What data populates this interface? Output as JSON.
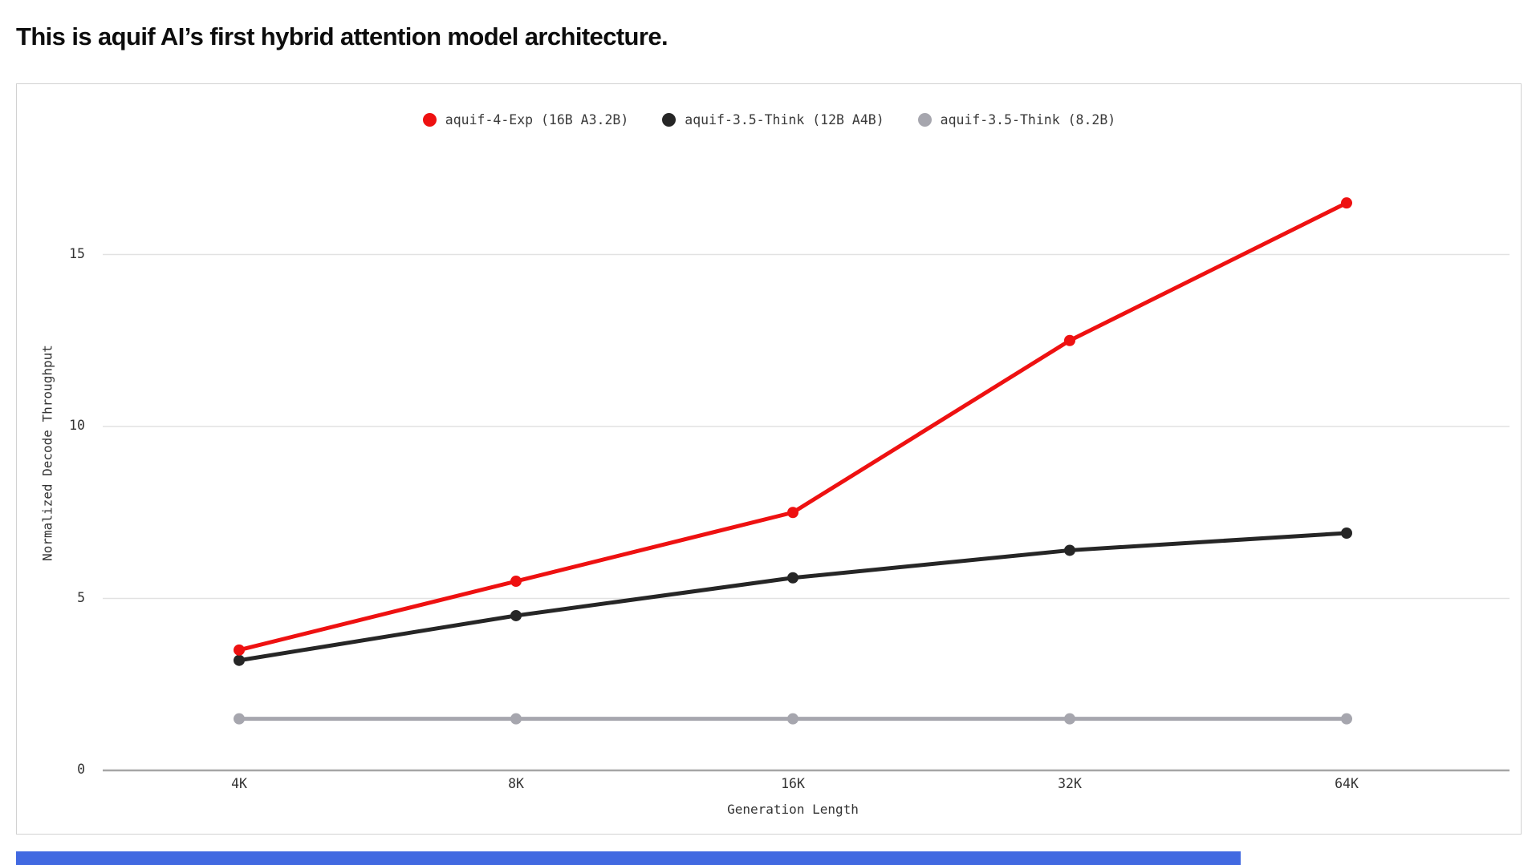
{
  "page": {
    "title": "This is aquif AI’s first hybrid attention model architecture."
  },
  "chart_data": {
    "type": "line",
    "categories": [
      "4K",
      "8K",
      "16K",
      "32K",
      "64K"
    ],
    "xlabel": "Generation Length",
    "ylabel": "Normalized Decode Throughput",
    "yticks": [
      0,
      5,
      10,
      15
    ],
    "ytick_labels": [
      "0",
      "5",
      "10",
      "15"
    ],
    "ylim": [
      0,
      18
    ],
    "grid": true,
    "legend_position": "top-center",
    "series": [
      {
        "name": "aquif-4-Exp (16B A3.2B)",
        "color": "#ee1111",
        "values": [
          3.5,
          5.5,
          7.5,
          12.5,
          16.5
        ]
      },
      {
        "name": "aquif-3.5-Think (12B A4B)",
        "color": "#262626",
        "values": [
          3.2,
          4.5,
          5.6,
          6.4,
          6.9
        ]
      },
      {
        "name": "aquif-3.5-Think (8.2B)",
        "color": "#a6a6ae",
        "values": [
          1.5,
          1.5,
          1.5,
          1.5,
          1.5
        ]
      }
    ],
    "colors": {
      "gridline": "#e2e2e2",
      "baseline": "#a6a6a6",
      "panel_border": "#d2d2d2",
      "text": "#333333"
    }
  },
  "footer": {
    "accent_color": "#4169e1"
  }
}
